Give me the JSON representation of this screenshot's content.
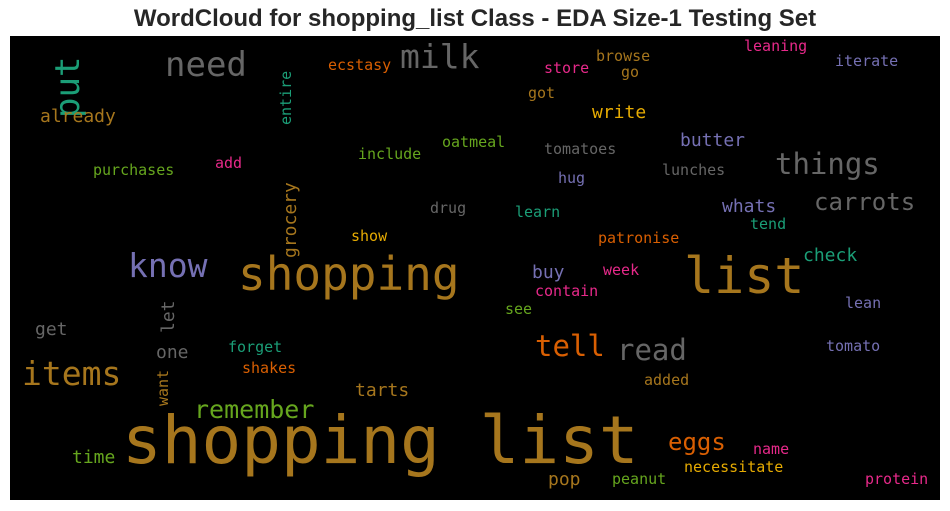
{
  "title": "WordCloud for shopping_list Class - EDA Size-1 Testing Set",
  "palette": {
    "background": "#000000",
    "ochre": "#a6761d",
    "gray": "#666666",
    "teal": "#1b9e77",
    "orange": "#d95f02",
    "purple": "#7570b3",
    "magenta": "#e7298a",
    "green": "#66a61e",
    "gold": "#e6ab02"
  },
  "words": {
    "shopping_list": "shopping list",
    "shopping": "shopping",
    "list": "list",
    "know": "know",
    "items": "items",
    "need": "need",
    "milk": "milk",
    "put": "put",
    "things": "things",
    "carrots": "carrots",
    "read": "read",
    "tell": "tell",
    "remember": "remember",
    "eggs": "eggs",
    "grocery": "grocery",
    "already": "already",
    "write": "write",
    "butter": "butter",
    "whats": "whats",
    "check": "check",
    "buy": "buy",
    "let": "let",
    "one": "one",
    "get": "get",
    "time": "time",
    "tarts": "tarts",
    "pop": "pop",
    "ecstasy": "ecstasy",
    "entire": "entire",
    "store": "store",
    "browse": "browse",
    "go": "go",
    "leaning": "leaning",
    "iterate": "iterate",
    "got": "got",
    "oatmeal": "oatmeal",
    "tomatoes": "tomatoes",
    "include": "include",
    "add": "add",
    "purchases": "purchases",
    "hug": "hug",
    "lunches": "lunches",
    "drug": "drug",
    "learn": "learn",
    "tend": "tend",
    "show": "show",
    "patronise": "patronise",
    "week": "week",
    "contain": "contain",
    "see": "see",
    "lean": "lean",
    "forget": "forget",
    "shakes": "shakes",
    "want": "want",
    "added": "added",
    "tomato": "tomato",
    "name": "name",
    "necessitate": "necessitate",
    "peanut": "peanut",
    "protein": "protein"
  }
}
